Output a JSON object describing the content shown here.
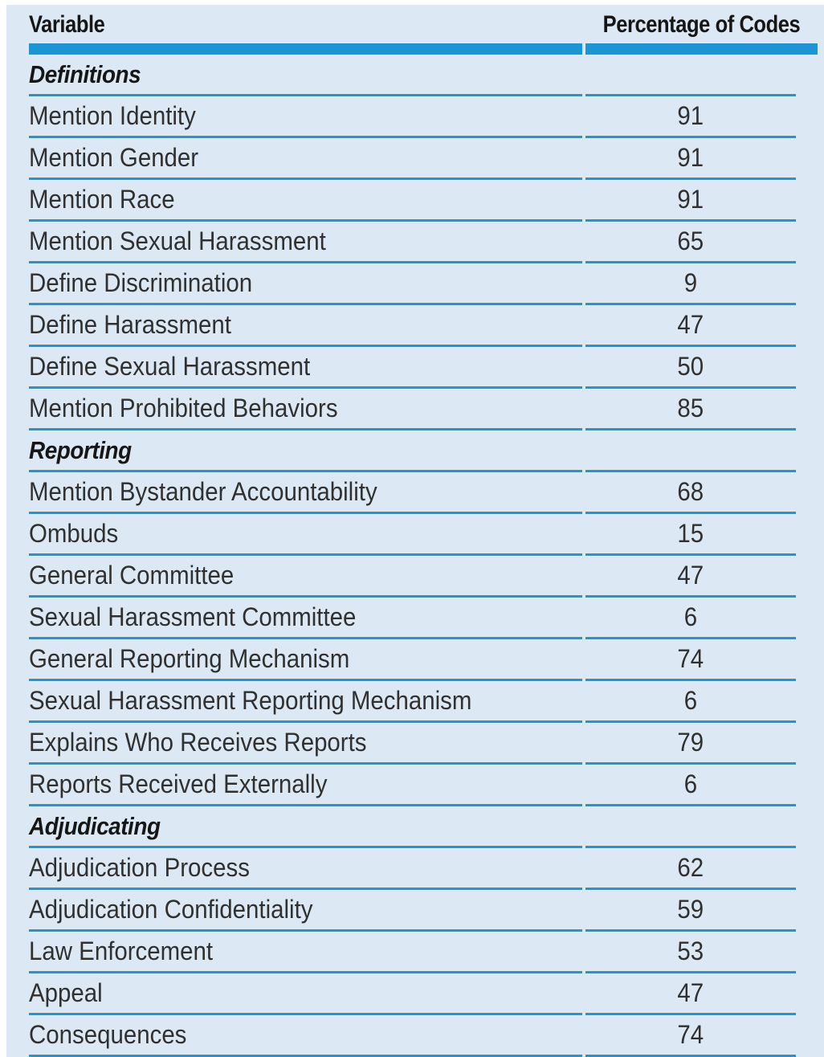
{
  "table": {
    "columns": {
      "variable": "Variable",
      "percentage": "Percentage of Codes"
    },
    "sections": [
      {
        "title": "Definitions",
        "rows": [
          {
            "label": "Mention Identity",
            "value": "91"
          },
          {
            "label": "Mention Gender",
            "value": "91"
          },
          {
            "label": "Mention Race",
            "value": "91"
          },
          {
            "label": "Mention Sexual Harassment",
            "value": "65"
          },
          {
            "label": "Define Discrimination",
            "value": "9"
          },
          {
            "label": "Define Harassment",
            "value": "47"
          },
          {
            "label": "Define Sexual Harassment",
            "value": "50"
          },
          {
            "label": "Mention Prohibited Behaviors",
            "value": "85"
          }
        ]
      },
      {
        "title": "Reporting",
        "rows": [
          {
            "label": "Mention Bystander Accountability",
            "value": "68"
          },
          {
            "label": "Ombuds",
            "value": "15"
          },
          {
            "label": "General Committee",
            "value": "47"
          },
          {
            "label": "Sexual Harassment Committee",
            "value": "6"
          },
          {
            "label": "General Reporting Mechanism",
            "value": "74"
          },
          {
            "label": "Sexual Harassment Reporting Mechanism",
            "value": "6"
          },
          {
            "label": "Explains Who Receives Reports",
            "value": "79"
          },
          {
            "label": "Reports Received Externally",
            "value": "6"
          }
        ]
      },
      {
        "title": "Adjudicating",
        "rows": [
          {
            "label": "Adjudication Process",
            "value": "62"
          },
          {
            "label": "Adjudication Confidentiality",
            "value": "59"
          },
          {
            "label": "Law Enforcement",
            "value": "53"
          },
          {
            "label": "Appeal",
            "value": "47"
          },
          {
            "label": "Consequences",
            "value": "74"
          }
        ]
      }
    ]
  },
  "colors": {
    "table_background": "#dce9f5",
    "header_bar": "#1b95d3",
    "row_rule": "#2695cd",
    "heading_text": "#161616",
    "body_text": "#303030"
  }
}
